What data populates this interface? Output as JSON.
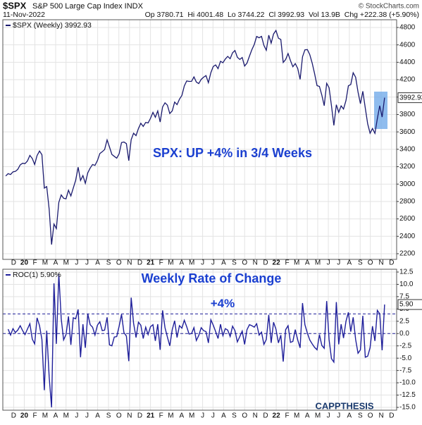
{
  "header": {
    "symbol": "$SPX",
    "name": "S&P 500 Large Cap Index INDX",
    "date": "11-Nov-2022",
    "quote": "Op 3780.71  Hi 4001.48  Lo 3744.22  Cl 3992.93  Vol 13.9B  Chg +222.38 (+5.90%)",
    "source": "© StockCharts.com",
    "logo": "CAPPTHESIS"
  },
  "chart_data": [
    {
      "type": "line",
      "legend": "$SPX (Weekly) 3992.93",
      "annotation": "SPX: UP +4% in 3/4 Weeks",
      "last_label": "3992.93",
      "grid": true,
      "xlim": [
        -1.2,
        162
      ],
      "xticks": [
        {
          "value": 3.3,
          "label": "D"
        },
        {
          "value": 7.7,
          "label": "20"
        },
        {
          "value": 12.1,
          "label": "F"
        },
        {
          "value": 16.3,
          "label": "M"
        },
        {
          "value": 20.7,
          "label": "A"
        },
        {
          "value": 25.0,
          "label": "M"
        },
        {
          "value": 29.4,
          "label": "J"
        },
        {
          "value": 33.7,
          "label": "J"
        },
        {
          "value": 38.1,
          "label": "A"
        },
        {
          "value": 42.6,
          "label": "S"
        },
        {
          "value": 46.9,
          "label": "O"
        },
        {
          "value": 51.3,
          "label": "N"
        },
        {
          "value": 55.6,
          "label": "D"
        },
        {
          "value": 60.0,
          "label": "21"
        },
        {
          "value": 64.4,
          "label": "F"
        },
        {
          "value": 68.4,
          "label": "M"
        },
        {
          "value": 72.9,
          "label": "A"
        },
        {
          "value": 77.1,
          "label": "M"
        },
        {
          "value": 81.6,
          "label": "J"
        },
        {
          "value": 85.9,
          "label": "J"
        },
        {
          "value": 90.3,
          "label": "A"
        },
        {
          "value": 94.7,
          "label": "S"
        },
        {
          "value": 99.0,
          "label": "O"
        },
        {
          "value": 103.4,
          "label": "N"
        },
        {
          "value": 107.7,
          "label": "D"
        },
        {
          "value": 112.1,
          "label": "22"
        },
        {
          "value": 116.6,
          "label": "F"
        },
        {
          "value": 120.6,
          "label": "M"
        },
        {
          "value": 125.0,
          "label": "A"
        },
        {
          "value": 129.3,
          "label": "M"
        },
        {
          "value": 133.7,
          "label": "J"
        },
        {
          "value": 138.0,
          "label": "J"
        },
        {
          "value": 142.4,
          "label": "A"
        },
        {
          "value": 146.9,
          "label": "S"
        },
        {
          "value": 151.1,
          "label": "O"
        },
        {
          "value": 155.6,
          "label": "N"
        },
        {
          "value": 159.9,
          "label": "D"
        }
      ],
      "ylim": [
        2135,
        4889
      ],
      "yticks": [
        2200,
        2400,
        2600,
        2800,
        3000,
        3200,
        3400,
        3600,
        3800,
        4000,
        4200,
        4400,
        4600,
        4800
      ],
      "series": [
        {
          "name": "$SPX",
          "color": "#1a1a6e",
          "values": [
            3093,
            3120,
            3110,
            3141,
            3146,
            3169,
            3221,
            3240,
            3235,
            3265,
            3330,
            3295,
            3225,
            3328,
            3380,
            3338,
            2954,
            2972,
            2711,
            2305,
            2541,
            2489,
            2790,
            2875,
            2837,
            2831,
            2930,
            2864,
            2955,
            3044,
            3194,
            3041,
            3098,
            3009,
            3130,
            3185,
            3225,
            3215,
            3271,
            3351,
            3372,
            3397,
            3508,
            3427,
            3341,
            3319,
            3298,
            3348,
            3477,
            3484,
            3465,
            3270,
            3510,
            3585,
            3557,
            3638,
            3699,
            3663,
            3709,
            3703,
            3756,
            3824,
            3768,
            3841,
            3714,
            3887,
            3934,
            3907,
            3811,
            3842,
            3943,
            3913,
            3975,
            4019,
            4128,
            4185,
            4180,
            4181,
            4232,
            4173,
            4155,
            4204,
            4229,
            4247,
            4166,
            4281,
            4352,
            4370,
            4327,
            4411,
            4395,
            4437,
            4468,
            4441,
            4509,
            4535,
            4458,
            4433,
            4455,
            4357,
            4391,
            4471,
            4545,
            4605,
            4697,
            4682,
            4698,
            4594,
            4538,
            4712,
            4620,
            4725,
            4766,
            4677,
            4662,
            4398,
            4431,
            4500,
            4419,
            4349,
            4385,
            4329,
            4204,
            4463,
            4543,
            4546,
            4488,
            4392,
            4271,
            4132,
            4123,
            4023,
            3901,
            4158,
            4108,
            3900,
            3675,
            3912,
            3825,
            3899,
            3863,
            3961,
            4130,
            4145,
            4280,
            4228,
            4058,
            3924,
            4067,
            3873,
            3693,
            3585,
            3639,
            3583,
            3752,
            3901,
            3770,
            3993
          ]
        }
      ]
    },
    {
      "type": "line",
      "title": "Weekly Rate of Change",
      "legend": "ROC(1) 5.90%",
      "last_label": "5.90",
      "grid": true,
      "xlim": [
        -1.2,
        162
      ],
      "reference_lines": [
        {
          "value": 4,
          "label": "+4%"
        },
        {
          "value": 0
        }
      ],
      "ylim": [
        -15.57,
        13.07
      ],
      "yticks": [
        {
          "value": 12.5,
          "label": "12.5"
        },
        {
          "value": 10,
          "label": "10.0"
        },
        {
          "value": 7.5,
          "label": "7.5"
        },
        {
          "value": 5,
          "label": "5.0"
        },
        {
          "value": 2.5,
          "label": "2.5"
        },
        {
          "value": 0,
          "label": "0.0"
        },
        {
          "value": -2.5,
          "label": "-2.5"
        },
        {
          "value": -5,
          "label": "-5.0"
        },
        {
          "value": -7.5,
          "label": "-7.5"
        },
        {
          "value": -10,
          "label": "-10.0"
        },
        {
          "value": -12.5,
          "label": "-12.5"
        },
        {
          "value": -15,
          "label": "-15.0"
        }
      ],
      "series": [
        {
          "name": "ROC(1)",
          "color": "#1f1f9a",
          "values": [
            null,
            0.9,
            -0.3,
            1.0,
            0.2,
            0.7,
            1.6,
            0.6,
            -0.2,
            0.9,
            2.0,
            -1.1,
            -2.1,
            3.2,
            1.6,
            -1.2,
            -11.5,
            0.6,
            -8.8,
            -15.0,
            10.2,
            -2.1,
            12.1,
            3.0,
            -1.3,
            -0.2,
            3.5,
            -2.3,
            3.2,
            3.0,
            4.9,
            -4.8,
            1.9,
            -2.9,
            4.0,
            1.8,
            1.3,
            -0.3,
            1.7,
            2.4,
            0.6,
            0.7,
            3.3,
            -2.3,
            -2.5,
            -0.7,
            -0.6,
            1.5,
            3.9,
            0.2,
            -0.5,
            -5.6,
            7.3,
            2.1,
            -0.8,
            2.3,
            1.7,
            -1.0,
            1.3,
            -0.2,
            1.4,
            1.8,
            -1.5,
            1.9,
            -3.3,
            4.7,
            1.2,
            -0.7,
            -2.5,
            0.8,
            2.6,
            -0.8,
            1.6,
            1.1,
            2.7,
            1.4,
            -0.1,
            0.0,
            1.2,
            -1.4,
            -0.4,
            1.2,
            0.6,
            0.4,
            -1.9,
            2.8,
            1.7,
            0.4,
            -1.0,
            1.9,
            -0.4,
            1.0,
            0.7,
            -0.6,
            1.5,
            0.6,
            -1.7,
            -0.6,
            0.5,
            -2.2,
            0.8,
            1.8,
            1.6,
            1.3,
            2.0,
            -0.3,
            0.3,
            -2.2,
            -1.2,
            3.8,
            -1.9,
            2.3,
            0.9,
            -1.9,
            -0.3,
            -5.7,
            0.8,
            1.6,
            -1.8,
            -1.6,
            0.8,
            -1.3,
            -2.9,
            6.2,
            1.8,
            0.1,
            -1.3,
            -2.1,
            -2.8,
            -3.3,
            -0.2,
            -2.4,
            -3.0,
            6.6,
            -1.2,
            -5.1,
            -5.8,
            6.4,
            -2.2,
            1.9,
            -0.9,
            2.5,
            4.3,
            0.4,
            3.3,
            -1.2,
            -4.0,
            -3.3,
            3.6,
            -4.8,
            -4.6,
            -2.9,
            1.5,
            -1.5,
            4.7,
            4.0,
            -3.4,
            5.9
          ]
        }
      ]
    }
  ]
}
